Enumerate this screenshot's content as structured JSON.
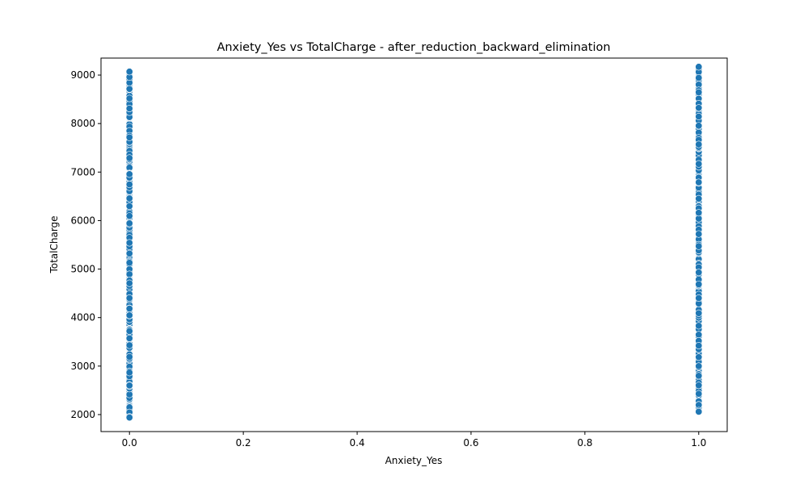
{
  "chart_data": {
    "type": "scatter",
    "title": "Anxiety_Yes vs TotalCharge - after_reduction_backward_elimination",
    "xlabel": "Anxiety_Yes",
    "ylabel": "TotalCharge",
    "xlim": [
      -0.05,
      1.05
    ],
    "ylim": [
      1650,
      9350
    ],
    "x_ticks": [
      "0.0",
      "0.2",
      "0.4",
      "0.6",
      "0.8",
      "1.0"
    ],
    "y_ticks": [
      "2000",
      "3000",
      "4000",
      "5000",
      "6000",
      "7000",
      "8000",
      "9000"
    ],
    "grid": false,
    "marker_color": "#1f77b4",
    "series": [
      {
        "x": 0,
        "y_min": 1940,
        "y_max": 9070
      },
      {
        "x": 1,
        "y_min": 2060,
        "y_max": 9170
      }
    ]
  }
}
